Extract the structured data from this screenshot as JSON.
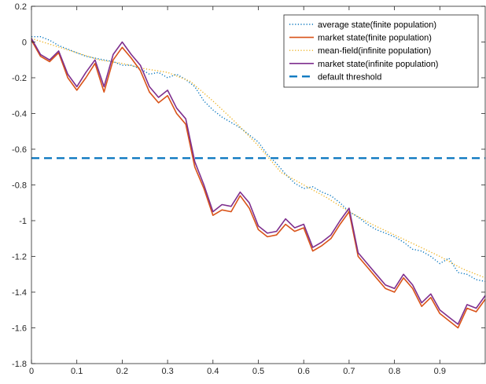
{
  "chart_data": {
    "type": "line",
    "xlim": [
      0,
      1
    ],
    "ylim": [
      -1.8,
      0.2
    ],
    "x_ticks": [
      0,
      0.1,
      0.2,
      0.3,
      0.4,
      0.5,
      0.6,
      0.7,
      0.8,
      0.9
    ],
    "x_tick_labels": [
      "0",
      "0.1",
      "0.2",
      "0.3",
      "0.4",
      "0.5",
      "0.6",
      "0.7",
      "0.8",
      "0.9"
    ],
    "y_ticks": [
      0.2,
      0,
      -0.2,
      -0.4,
      -0.6,
      -0.8,
      -1,
      -1.2,
      -1.4,
      -1.6,
      -1.8
    ],
    "y_tick_labels": [
      "0.2",
      "0",
      "-0.2",
      "-0.4",
      "-0.6",
      "-0.8",
      "-1",
      "-1.2",
      "-1.4",
      "-1.6",
      "-1.8"
    ],
    "grid": false,
    "legend_position": "top-right",
    "series": [
      {
        "name": "average state(finite population)",
        "color": "#0072BD",
        "style": "dotted",
        "x": [
          0,
          0.02,
          0.04,
          0.06,
          0.08,
          0.1,
          0.12,
          0.14,
          0.16,
          0.18,
          0.2,
          0.22,
          0.24,
          0.26,
          0.28,
          0.3,
          0.32,
          0.34,
          0.36,
          0.38,
          0.4,
          0.42,
          0.44,
          0.46,
          0.48,
          0.5,
          0.52,
          0.54,
          0.56,
          0.58,
          0.6,
          0.62,
          0.64,
          0.66,
          0.68,
          0.7,
          0.72,
          0.74,
          0.76,
          0.78,
          0.8,
          0.82,
          0.84,
          0.86,
          0.88,
          0.9,
          0.92,
          0.94,
          0.96,
          0.98,
          1.0
        ],
        "y": [
          0.03,
          0.03,
          0.01,
          -0.02,
          -0.04,
          -0.06,
          -0.08,
          -0.09,
          -0.1,
          -0.11,
          -0.13,
          -0.13,
          -0.15,
          -0.18,
          -0.17,
          -0.2,
          -0.18,
          -0.21,
          -0.25,
          -0.33,
          -0.38,
          -0.42,
          -0.45,
          -0.48,
          -0.52,
          -0.56,
          -0.63,
          -0.68,
          -0.74,
          -0.79,
          -0.82,
          -0.81,
          -0.84,
          -0.86,
          -0.9,
          -0.95,
          -0.98,
          -1.02,
          -1.05,
          -1.07,
          -1.09,
          -1.12,
          -1.16,
          -1.17,
          -1.2,
          -1.24,
          -1.21,
          -1.29,
          -1.3,
          -1.33,
          -1.34
        ]
      },
      {
        "name": "market state(finite population)",
        "color": "#D95319",
        "style": "solid",
        "x": [
          0,
          0.02,
          0.04,
          0.06,
          0.08,
          0.1,
          0.12,
          0.14,
          0.16,
          0.18,
          0.2,
          0.22,
          0.24,
          0.26,
          0.28,
          0.3,
          0.32,
          0.34,
          0.36,
          0.38,
          0.4,
          0.42,
          0.44,
          0.46,
          0.48,
          0.5,
          0.52,
          0.54,
          0.56,
          0.58,
          0.6,
          0.62,
          0.64,
          0.66,
          0.68,
          0.7,
          0.72,
          0.74,
          0.76,
          0.78,
          0.8,
          0.82,
          0.84,
          0.86,
          0.88,
          0.9,
          0.92,
          0.94,
          0.96,
          0.98,
          1.0
        ],
        "y": [
          0.01,
          -0.08,
          -0.11,
          -0.06,
          -0.2,
          -0.27,
          -0.2,
          -0.12,
          -0.28,
          -0.1,
          -0.03,
          -0.09,
          -0.16,
          -0.28,
          -0.34,
          -0.3,
          -0.4,
          -0.46,
          -0.7,
          -0.82,
          -0.97,
          -0.94,
          -0.95,
          -0.86,
          -0.93,
          -1.05,
          -1.09,
          -1.08,
          -1.02,
          -1.06,
          -1.04,
          -1.17,
          -1.14,
          -1.1,
          -1.02,
          -0.95,
          -1.2,
          -1.26,
          -1.32,
          -1.38,
          -1.4,
          -1.32,
          -1.38,
          -1.48,
          -1.43,
          -1.52,
          -1.56,
          -1.6,
          -1.49,
          -1.51,
          -1.44
        ]
      },
      {
        "name": "mean-field(infinite population)",
        "color": "#EDB120",
        "style": "dotted",
        "x": [
          0,
          0.05,
          0.1,
          0.15,
          0.2,
          0.25,
          0.3,
          0.35,
          0.4,
          0.45,
          0.5,
          0.55,
          0.6,
          0.65,
          0.7,
          0.75,
          0.8,
          0.85,
          0.9,
          0.95,
          1.0
        ],
        "y": [
          0.02,
          -0.02,
          -0.06,
          -0.1,
          -0.12,
          -0.15,
          -0.17,
          -0.22,
          -0.33,
          -0.45,
          -0.58,
          -0.73,
          -0.8,
          -0.87,
          -0.95,
          -1.02,
          -1.08,
          -1.14,
          -1.2,
          -1.27,
          -1.32
        ]
      },
      {
        "name": "market state(infinite population)",
        "color": "#7E2F8E",
        "style": "solid",
        "x": [
          0,
          0.02,
          0.04,
          0.06,
          0.08,
          0.1,
          0.12,
          0.14,
          0.16,
          0.18,
          0.2,
          0.22,
          0.24,
          0.26,
          0.28,
          0.3,
          0.32,
          0.34,
          0.36,
          0.38,
          0.4,
          0.42,
          0.44,
          0.46,
          0.48,
          0.5,
          0.52,
          0.54,
          0.56,
          0.58,
          0.6,
          0.62,
          0.64,
          0.66,
          0.68,
          0.7,
          0.72,
          0.74,
          0.76,
          0.78,
          0.8,
          0.82,
          0.84,
          0.86,
          0.88,
          0.9,
          0.92,
          0.94,
          0.96,
          0.98,
          1.0
        ],
        "y": [
          0.02,
          -0.07,
          -0.1,
          -0.05,
          -0.18,
          -0.25,
          -0.17,
          -0.1,
          -0.25,
          -0.07,
          0.0,
          -0.07,
          -0.13,
          -0.25,
          -0.31,
          -0.27,
          -0.37,
          -0.43,
          -0.67,
          -0.8,
          -0.95,
          -0.91,
          -0.92,
          -0.84,
          -0.9,
          -1.03,
          -1.07,
          -1.06,
          -0.99,
          -1.04,
          -1.02,
          -1.15,
          -1.12,
          -1.08,
          -1.0,
          -0.93,
          -1.18,
          -1.24,
          -1.3,
          -1.36,
          -1.38,
          -1.3,
          -1.36,
          -1.46,
          -1.41,
          -1.5,
          -1.54,
          -1.58,
          -1.47,
          -1.49,
          -1.42
        ]
      },
      {
        "name": "default threshold",
        "color": "#0072BD",
        "style": "dashed",
        "x": [
          0,
          1
        ],
        "y": [
          -0.65,
          -0.65
        ]
      }
    ]
  }
}
